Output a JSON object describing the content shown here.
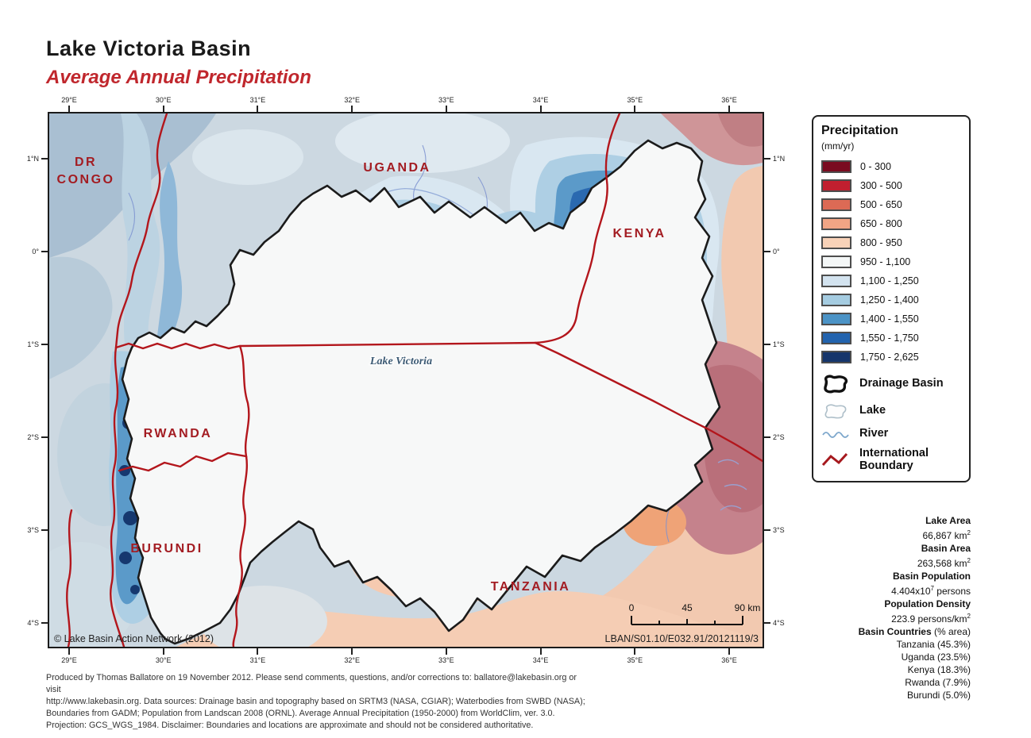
{
  "title": {
    "main": "Lake Victoria Basin",
    "subtitle": "Average Annual Precipitation"
  },
  "colors": {
    "subtitle_red": "#c0272d",
    "country_label_red": "#a31c22",
    "boundary_red": "#b3161c",
    "basin_outline_black": "#1b1b1b"
  },
  "axes": {
    "lon_labels": [
      "29°E",
      "30°E",
      "31°E",
      "32°E",
      "33°E",
      "34°E",
      "35°E",
      "36°E"
    ],
    "lat_labels": [
      "1°N",
      "0°",
      "1°S",
      "2°S",
      "3°S",
      "4°S"
    ]
  },
  "map": {
    "labels": {
      "dr_congo_line1": "DR",
      "dr_congo_line2": "CONGO",
      "uganda": "UGANDA",
      "kenya": "KENYA",
      "rwanda": "RWANDA",
      "burundi": "BURUNDI",
      "tanzania": "TANZANIA",
      "lake": "Lake Victoria"
    },
    "copyright": "© Lake Basin Action Network (2012)",
    "map_code": "LBAN/S01.10/E032.91/20121119/3",
    "scalebar": {
      "t0": "0",
      "t45": "45",
      "t90": "90 km"
    }
  },
  "legend": {
    "title": "Precipitation",
    "units": "(mm/yr)",
    "items": [
      {
        "color": "#7a0b20",
        "label": "0 - 300"
      },
      {
        "color": "#c11f2f",
        "label": "300 - 500"
      },
      {
        "color": "#dc6a55",
        "label": "500 - 650"
      },
      {
        "color": "#f1a585",
        "label": "650 - 800"
      },
      {
        "color": "#f8d2b8",
        "label": "800 - 950"
      },
      {
        "color": "#f4f7f7",
        "label": "950 - 1,100"
      },
      {
        "color": "#d3e3ef",
        "label": "1,100 - 1,250"
      },
      {
        "color": "#a5cce1",
        "label": "1,250 - 1,400"
      },
      {
        "color": "#4b93c6",
        "label": "1,400 - 1,550"
      },
      {
        "color": "#2263ae",
        "label": "1,550 - 1,750"
      },
      {
        "color": "#15356b",
        "label": "1,750 - 2,625"
      }
    ],
    "features": [
      {
        "icon": "drainage-basin-icon",
        "label": "Drainage Basin"
      },
      {
        "icon": "lake-icon",
        "label": "Lake"
      },
      {
        "icon": "river-icon",
        "label": "River"
      },
      {
        "icon": "international-boundary-icon",
        "label": "International Boundary"
      }
    ]
  },
  "stats": {
    "entries": [
      {
        "label": "Lake Area",
        "value_pre": "66,867 km",
        "value_sup": "2",
        "value_post": ""
      },
      {
        "label": "Basin Area",
        "value_pre": "263,568 km",
        "value_sup": "2",
        "value_post": ""
      },
      {
        "label": "Basin Population",
        "value_pre": "4.404x10",
        "value_sup": "7",
        "value_post": " persons"
      },
      {
        "label": "Population Density",
        "value_pre": "223.9 persons/km",
        "value_sup": "2",
        "value_post": ""
      }
    ],
    "countries_header_bold": "Basin Countries",
    "countries_header_normal": " (% area)",
    "countries": [
      "Tanzania (45.3%)",
      "Uganda (23.5%)",
      "Kenya (18.3%)",
      "Rwanda (7.9%)",
      "Burundi (5.0%)"
    ]
  },
  "credits": {
    "lines": [
      "Produced by Thomas Ballatore on 19 November 2012. Please send comments, questions, and/or corrections to: ballatore@lakebasin.org or visit",
      "http://www.lakebasin.org. Data sources: Drainage basin and topography based on SRTM3 (NASA, CGIAR); Waterbodies from SWBD (NASA);",
      "Boundaries from GADM; Population from Landscan 2008 (ORNL). Average Annual Precipitation (1950-2000) from WorldClim, ver. 3.0.",
      "Projection: GCS_WGS_1984. Disclaimer: Boundaries and locations are approximate and should not be considered authoritative."
    ]
  }
}
